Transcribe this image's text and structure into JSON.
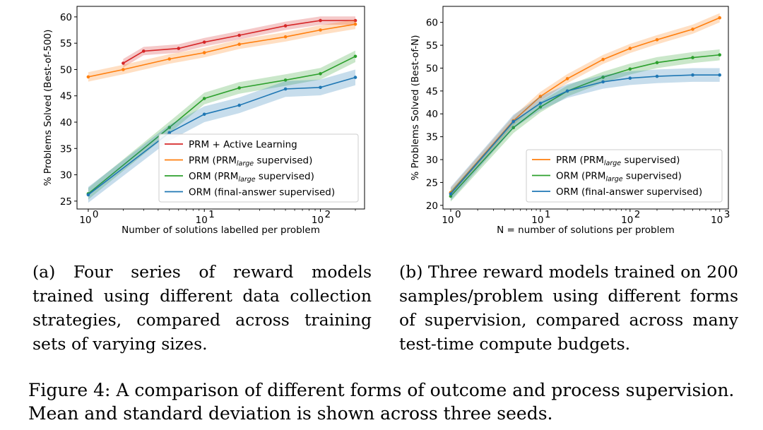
{
  "charts": [
    {
      "type": "line",
      "xscale": "log",
      "xlim": [
        0.8,
        240
      ],
      "ylim": [
        23.5,
        62.0
      ],
      "xticks": [
        {
          "v": 1,
          "label": "10",
          "exp": "0"
        },
        {
          "v": 10,
          "label": "10",
          "exp": "1"
        },
        {
          "v": 100,
          "label": "10",
          "exp": "2"
        }
      ],
      "yticks": [
        25,
        30,
        35,
        40,
        45,
        50,
        55,
        60
      ],
      "xlabel": "Number of solutions labelled per problem",
      "ylabel": "% Problems Solved (Best-of-500)",
      "legend_position": "lower-right",
      "series": [
        {
          "name": "PRM + Active Learning",
          "color": "#d62728",
          "x": [
            2,
            3,
            6,
            10,
            20,
            50,
            100,
            200
          ],
          "y": [
            51.2,
            53.5,
            54.0,
            55.2,
            56.5,
            58.3,
            59.3,
            59.3
          ],
          "sd": 0.8
        },
        {
          "name": "PRM (PRMlarge supervised)",
          "parts": [
            "PRM (PRM",
            "large",
            " supervised)"
          ],
          "color": "#ff7f0e",
          "x": [
            1,
            2,
            5,
            10,
            20,
            50,
            100,
            200
          ],
          "y": [
            48.6,
            50.0,
            52.0,
            53.2,
            54.8,
            56.2,
            57.5,
            58.6
          ],
          "sd": 0.9
        },
        {
          "name": "ORM (PRMlarge supervised)",
          "parts": [
            "ORM (PRM",
            "large",
            " supervised)"
          ],
          "color": "#2ca02c",
          "x": [
            1,
            5,
            10,
            20,
            50,
            100,
            200
          ],
          "y": [
            26.4,
            39.0,
            44.5,
            46.5,
            48.0,
            49.2,
            52.5
          ],
          "sd": 1.1
        },
        {
          "name": "ORM (final-answer supervised)",
          "color": "#1f77b4",
          "x": [
            1,
            5,
            10,
            20,
            50,
            100,
            200
          ],
          "y": [
            26.2,
            38.0,
            41.5,
            43.2,
            46.3,
            46.6,
            48.5
          ],
          "sd": 1.5
        }
      ]
    },
    {
      "type": "line",
      "xscale": "log",
      "xlim": [
        0.82,
        1250
      ],
      "ylim": [
        19.2,
        63.5
      ],
      "xticks": [
        {
          "v": 1,
          "label": "10",
          "exp": "0"
        },
        {
          "v": 10,
          "label": "10",
          "exp": "1"
        },
        {
          "v": 100,
          "label": "10",
          "exp": "2"
        },
        {
          "v": 1000,
          "label": "10",
          "exp": "3"
        }
      ],
      "yticks": [
        20,
        25,
        30,
        35,
        40,
        45,
        50,
        55,
        60
      ],
      "xlabel": "N = number of solutions per problem",
      "ylabel": "% Problems Solved (Best-of-N)",
      "legend_position": "lower-right",
      "series": [
        {
          "name": "PRM (PRMlarge supervised)",
          "parts": [
            "PRM (PRM",
            "large",
            " supervised)"
          ],
          "color": "#ff7f0e",
          "x": [
            1,
            5,
            10,
            20,
            50,
            100,
            200,
            500,
            1000
          ],
          "y": [
            22.8,
            38.5,
            43.8,
            47.7,
            51.9,
            54.3,
            56.2,
            58.5,
            61.0
          ],
          "sd": 1.0
        },
        {
          "name": "ORM (PRMlarge supervised)",
          "parts": [
            "ORM (PRM",
            "large",
            " supervised)"
          ],
          "color": "#2ca02c",
          "x": [
            1,
            5,
            10,
            20,
            50,
            100,
            200,
            500,
            1000
          ],
          "y": [
            22.0,
            37.0,
            41.5,
            45.0,
            48.0,
            49.8,
            51.2,
            52.3,
            52.9
          ],
          "sd": 1.2
        },
        {
          "name": "ORM (final-answer supervised)",
          "color": "#1f77b4",
          "x": [
            1,
            5,
            10,
            20,
            50,
            100,
            200,
            500,
            1000
          ],
          "y": [
            22.5,
            38.3,
            42.3,
            45.0,
            47.0,
            47.8,
            48.2,
            48.5,
            48.5
          ],
          "sd": 1.5
        }
      ]
    }
  ],
  "captions": {
    "a": "(a) Four series of reward models trained using different data collection strategies, compared across training sets of varying sizes.",
    "b": "(b) Three reward models trained on 200 samples/problem using different forms of supervision, compared across many test-time compute budgets.",
    "figure": "Figure 4: A comparison of different forms of outcome and process supervision.",
    "figure_line2": "Mean and standard deviation is shown across three seeds."
  }
}
